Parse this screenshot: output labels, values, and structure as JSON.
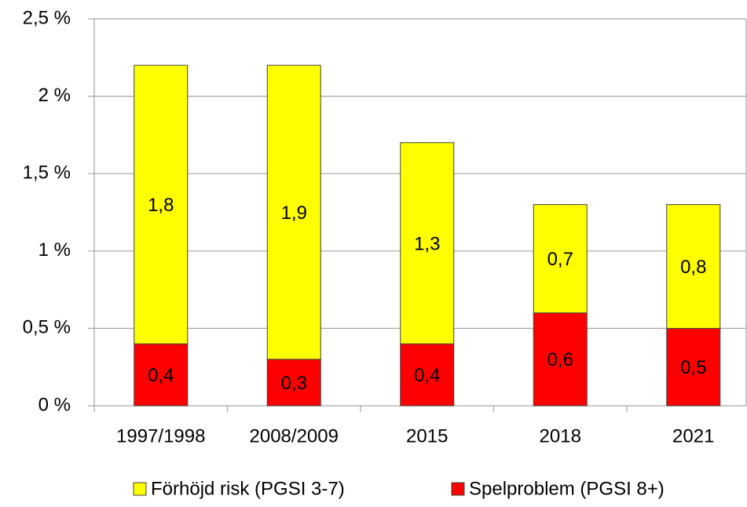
{
  "chart_data": {
    "type": "stacked_bar",
    "categories": [
      "1997/1998",
      "2008/2009",
      "2015",
      "2018",
      "2021"
    ],
    "series": [
      {
        "name": "Spelproblem (PGSI 8+)",
        "color": "#ff0000",
        "values": [
          0.4,
          0.3,
          0.4,
          0.6,
          0.5
        ],
        "value_labels": [
          "0,4",
          "0,3",
          "0,4",
          "0,6",
          "0,5"
        ]
      },
      {
        "name": "Förhöjd risk (PGSI 3-7)",
        "color": "#ffff00",
        "values": [
          1.8,
          1.9,
          1.3,
          0.7,
          0.8
        ],
        "value_labels": [
          "1,8",
          "1,9",
          "1,3",
          "0,7",
          "0,8"
        ]
      }
    ],
    "ylim": [
      0,
      2.5
    ],
    "yticks": [
      {
        "value": 0,
        "label": "0 %"
      },
      {
        "value": 0.5,
        "label": "0,5 %"
      },
      {
        "value": 1,
        "label": "1 %"
      },
      {
        "value": 1.5,
        "label": "1,5 %"
      },
      {
        "value": 2,
        "label": "2 %"
      },
      {
        "value": 2.5,
        "label": "2,5 %"
      }
    ],
    "grid": true,
    "legend": "bottom"
  }
}
